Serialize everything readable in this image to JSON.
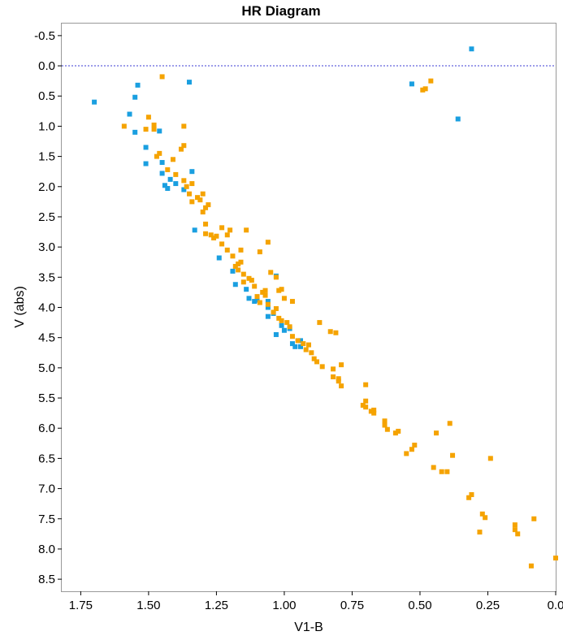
{
  "chart_data": {
    "type": "scatter",
    "title": "HR Diagram",
    "xlabel": "V1-B",
    "ylabel": "V (abs)",
    "xlim": [
      1.82,
      0.0
    ],
    "ylim": [
      8.7,
      -0.7
    ],
    "x_inverted": true,
    "y_inverted": true,
    "x_ticks": [
      1.75,
      1.5,
      1.25,
      1.0,
      0.75,
      0.5,
      0.25,
      0.0
    ],
    "x_tick_labels": [
      "1.75",
      "1.50",
      "1.25",
      "1.00",
      "0.75",
      "0.50",
      "0.25",
      "0.0"
    ],
    "y_ticks": [
      -0.5,
      0.0,
      0.5,
      1.0,
      1.5,
      2.0,
      2.5,
      3.0,
      3.5,
      4.0,
      4.5,
      5.0,
      5.5,
      6.0,
      6.5,
      7.0,
      7.5,
      8.0,
      8.5
    ],
    "y_tick_labels": [
      "-0.5",
      "0.0",
      "0.5",
      "1.0",
      "1.5",
      "2.0",
      "2.5",
      "3.0",
      "3.5",
      "4.0",
      "4.5",
      "5.0",
      "5.5",
      "6.0",
      "6.5",
      "7.0",
      "7.5",
      "8.0",
      "8.5"
    ],
    "reference_line": {
      "y": 0.0,
      "style": "dotted",
      "color": "#3b3bd6"
    },
    "grid": false,
    "series": [
      {
        "color": "#1a9fe0",
        "points": [
          [
            1.7,
            0.6
          ],
          [
            1.57,
            0.8
          ],
          [
            1.55,
            0.52
          ],
          [
            1.54,
            0.32
          ],
          [
            1.55,
            1.1
          ],
          [
            1.46,
            1.08
          ],
          [
            1.51,
            1.35
          ],
          [
            1.51,
            1.62
          ],
          [
            1.45,
            1.6
          ],
          [
            1.45,
            1.78
          ],
          [
            1.42,
            1.88
          ],
          [
            1.44,
            1.98
          ],
          [
            1.43,
            2.03
          ],
          [
            1.4,
            1.95
          ],
          [
            1.37,
            2.05
          ],
          [
            1.35,
            0.27
          ],
          [
            1.34,
            1.75
          ],
          [
            1.33,
            2.72
          ],
          [
            1.24,
            3.18
          ],
          [
            1.19,
            3.4
          ],
          [
            1.18,
            3.62
          ],
          [
            1.14,
            3.7
          ],
          [
            1.13,
            3.85
          ],
          [
            1.11,
            3.9
          ],
          [
            1.1,
            3.88
          ],
          [
            1.06,
            3.9
          ],
          [
            1.06,
            4.0
          ],
          [
            1.06,
            4.15
          ],
          [
            1.04,
            4.1
          ],
          [
            1.03,
            4.45
          ],
          [
            1.03,
            3.48
          ],
          [
            1.01,
            4.3
          ],
          [
            1.0,
            4.38
          ],
          [
            0.98,
            4.35
          ],
          [
            0.97,
            4.6
          ],
          [
            0.96,
            4.65
          ],
          [
            0.94,
            4.55
          ],
          [
            0.94,
            4.65
          ],
          [
            0.53,
            0.3
          ],
          [
            0.36,
            0.88
          ],
          [
            0.31,
            -0.28
          ]
        ]
      },
      {
        "color": "#f5a300",
        "points": [
          [
            1.59,
            1.0
          ],
          [
            1.5,
            0.85
          ],
          [
            1.48,
            0.98
          ],
          [
            1.48,
            1.05
          ],
          [
            1.51,
            1.05
          ],
          [
            1.45,
            0.18
          ],
          [
            1.47,
            1.5
          ],
          [
            1.46,
            1.45
          ],
          [
            1.43,
            1.72
          ],
          [
            1.41,
            1.55
          ],
          [
            1.4,
            1.8
          ],
          [
            1.38,
            1.38
          ],
          [
            1.37,
            1.32
          ],
          [
            1.37,
            1.0
          ],
          [
            1.37,
            1.9
          ],
          [
            1.36,
            2.0
          ],
          [
            1.35,
            2.12
          ],
          [
            1.34,
            1.95
          ],
          [
            1.34,
            2.25
          ],
          [
            1.32,
            2.18
          ],
          [
            1.31,
            2.22
          ],
          [
            1.3,
            2.12
          ],
          [
            1.3,
            2.42
          ],
          [
            1.29,
            2.35
          ],
          [
            1.29,
            2.62
          ],
          [
            1.29,
            2.78
          ],
          [
            1.28,
            2.3
          ],
          [
            1.27,
            2.8
          ],
          [
            1.26,
            2.85
          ],
          [
            1.25,
            2.82
          ],
          [
            1.23,
            2.68
          ],
          [
            1.23,
            2.95
          ],
          [
            1.21,
            2.8
          ],
          [
            1.21,
            3.05
          ],
          [
            1.2,
            2.72
          ],
          [
            1.19,
            3.15
          ],
          [
            1.18,
            3.32
          ],
          [
            1.17,
            3.28
          ],
          [
            1.17,
            3.38
          ],
          [
            1.16,
            3.25
          ],
          [
            1.16,
            3.05
          ],
          [
            1.15,
            3.45
          ],
          [
            1.15,
            3.58
          ],
          [
            1.14,
            2.72
          ],
          [
            1.13,
            3.52
          ],
          [
            1.12,
            3.55
          ],
          [
            1.11,
            3.65
          ],
          [
            1.1,
            3.82
          ],
          [
            1.09,
            3.92
          ],
          [
            1.09,
            3.08
          ],
          [
            1.08,
            3.75
          ],
          [
            1.07,
            3.72
          ],
          [
            1.07,
            3.8
          ],
          [
            1.06,
            3.95
          ],
          [
            1.06,
            2.92
          ],
          [
            1.05,
            3.42
          ],
          [
            1.04,
            4.08
          ],
          [
            1.03,
            3.5
          ],
          [
            1.03,
            4.02
          ],
          [
            1.02,
            3.72
          ],
          [
            1.02,
            4.18
          ],
          [
            1.01,
            3.7
          ],
          [
            1.01,
            4.22
          ],
          [
            1.0,
            3.85
          ],
          [
            0.99,
            4.25
          ],
          [
            0.98,
            4.32
          ],
          [
            0.97,
            3.9
          ],
          [
            0.97,
            4.48
          ],
          [
            0.95,
            4.55
          ],
          [
            0.93,
            4.6
          ],
          [
            0.92,
            4.7
          ],
          [
            0.91,
            4.62
          ],
          [
            0.9,
            4.75
          ],
          [
            0.89,
            4.85
          ],
          [
            0.88,
            4.9
          ],
          [
            0.87,
            4.25
          ],
          [
            0.86,
            4.98
          ],
          [
            0.83,
            4.4
          ],
          [
            0.82,
            5.02
          ],
          [
            0.82,
            5.15
          ],
          [
            0.81,
            4.42
          ],
          [
            0.8,
            5.18
          ],
          [
            0.8,
            5.22
          ],
          [
            0.79,
            4.95
          ],
          [
            0.79,
            5.3
          ],
          [
            0.7,
            5.28
          ],
          [
            0.7,
            5.55
          ],
          [
            0.71,
            5.62
          ],
          [
            0.7,
            5.65
          ],
          [
            0.68,
            5.72
          ],
          [
            0.67,
            5.7
          ],
          [
            0.67,
            5.75
          ],
          [
            0.63,
            5.88
          ],
          [
            0.63,
            5.95
          ],
          [
            0.62,
            6.02
          ],
          [
            0.59,
            6.08
          ],
          [
            0.58,
            6.05
          ],
          [
            0.55,
            6.42
          ],
          [
            0.53,
            6.35
          ],
          [
            0.52,
            6.28
          ],
          [
            0.49,
            0.4
          ],
          [
            0.48,
            0.38
          ],
          [
            0.46,
            0.25
          ],
          [
            0.45,
            6.65
          ],
          [
            0.44,
            6.08
          ],
          [
            0.42,
            6.72
          ],
          [
            0.4,
            6.72
          ],
          [
            0.39,
            5.92
          ],
          [
            0.38,
            6.45
          ],
          [
            0.32,
            7.15
          ],
          [
            0.31,
            7.1
          ],
          [
            0.28,
            7.72
          ],
          [
            0.27,
            7.42
          ],
          [
            0.26,
            7.48
          ],
          [
            0.24,
            6.5
          ],
          [
            0.15,
            7.6
          ],
          [
            0.15,
            7.68
          ],
          [
            0.14,
            7.75
          ],
          [
            0.09,
            8.28
          ],
          [
            0.08,
            7.5
          ],
          [
            0.0,
            8.15
          ]
        ]
      }
    ]
  }
}
